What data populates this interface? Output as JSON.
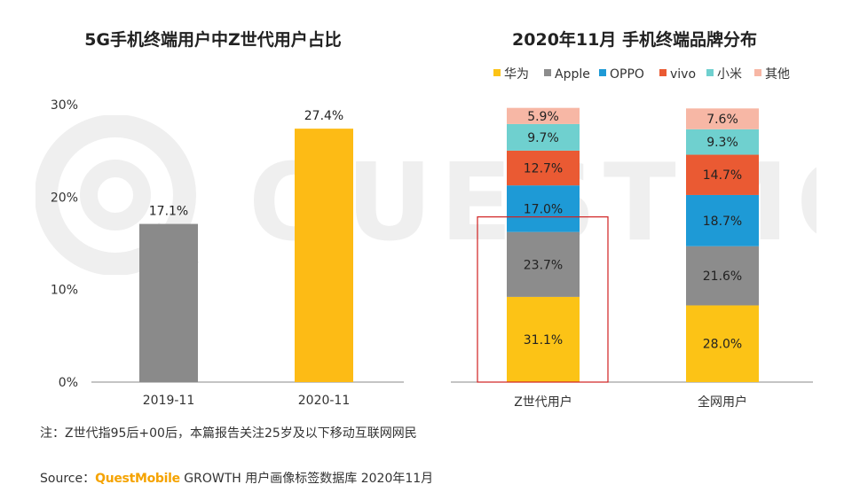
{
  "colors": {
    "huawei": "#fcc316",
    "apple": "#8c8c8c",
    "oppo": "#1e9ad6",
    "vivo": "#ea5a33",
    "xiaomi": "#6fd0cf",
    "others": "#f7b7a5",
    "gray_bar": "#8a8a8a",
    "orange_bar": "#fdbb15",
    "highlight": "#d02020"
  },
  "chart_data": [
    {
      "type": "bar",
      "title": "5G手机终端用户中Z世代用户占比",
      "categories": [
        "2019-11",
        "2020-11"
      ],
      "values": [
        17.1,
        27.4
      ],
      "value_labels": [
        "17.1%",
        "27.4%"
      ],
      "ylim": [
        0,
        30
      ],
      "yticks": [
        "0%",
        "10%",
        "20%",
        "30%"
      ],
      "xlabel": "",
      "ylabel": ""
    },
    {
      "type": "bar",
      "stacked": true,
      "title": "2020年11月 手机终端品牌分布",
      "categories": [
        "Z世代用户",
        "全网用户"
      ],
      "series": [
        {
          "name": "华为",
          "values": [
            31.1,
            28.0
          ],
          "labels": [
            "31.1%",
            "28.0%"
          ]
        },
        {
          "name": "Apple",
          "values": [
            23.7,
            21.6
          ],
          "labels": [
            "23.7%",
            "21.6%"
          ]
        },
        {
          "name": "OPPO",
          "values": [
            17.0,
            18.7
          ],
          "labels": [
            "17.0%",
            "18.7%"
          ]
        },
        {
          "name": "vivo",
          "values": [
            12.7,
            14.7
          ],
          "labels": [
            "12.7%",
            "14.7%"
          ]
        },
        {
          "name": "小米",
          "values": [
            9.7,
            9.3
          ],
          "labels": [
            "9.7%",
            "9.3%"
          ]
        },
        {
          "name": "其他",
          "values": [
            5.9,
            7.6
          ],
          "labels": [
            "5.9%",
            "7.6%"
          ]
        }
      ],
      "ylim": [
        0,
        100
      ],
      "legend_position": "top",
      "highlight": "Z世代用户 华为+Apple"
    }
  ],
  "note": "注：Z世代指95后+00后，本篇报告关注25岁及以下移动互联网网民",
  "source": {
    "prefix": "Source：",
    "brand": "QuestMobile",
    "rest": " GROWTH 用户画像标签数据库 2020年11月"
  }
}
